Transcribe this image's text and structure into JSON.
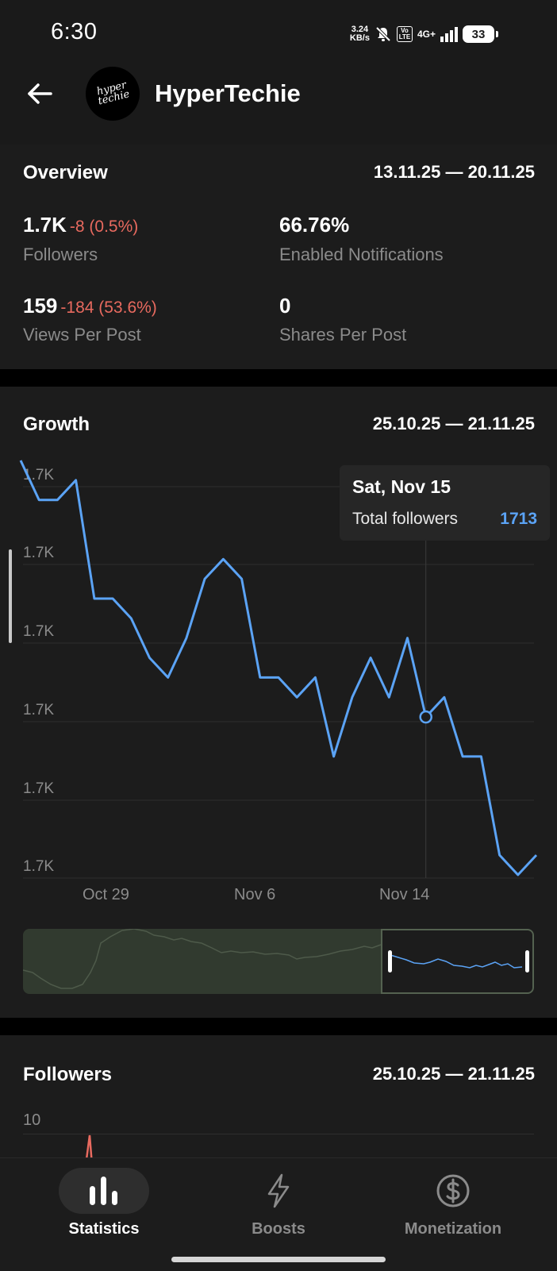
{
  "status_bar": {
    "time": "6:30",
    "net_speed_value": "3.24",
    "net_speed_unit": "KB/s",
    "volte": "Vo LTE",
    "network": "4G+",
    "battery": "33"
  },
  "header": {
    "channel_name": "HyperTechie",
    "avatar_text_line1": "hyper",
    "avatar_text_line2": "techie"
  },
  "overview": {
    "title": "Overview",
    "range": "13.11.25 — 20.11.25",
    "stats": [
      {
        "value": "1.7K",
        "delta": "-8 (0.5%)",
        "label": "Followers"
      },
      {
        "value": "66.76%",
        "delta": "",
        "label": "Enabled Notifications"
      },
      {
        "value": "159",
        "delta": "-184 (53.6%)",
        "label": "Views Per Post"
      },
      {
        "value": "0",
        "delta": "",
        "label": "Shares Per Post"
      }
    ]
  },
  "growth": {
    "title": "Growth",
    "range": "25.10.25 — 21.11.25",
    "tooltip": {
      "date": "Sat, Nov 15",
      "label": "Total followers",
      "value": "1713"
    }
  },
  "followers": {
    "title": "Followers",
    "range": "25.10.25 — 21.11.25",
    "first_tick": "10"
  },
  "bottom_nav": {
    "items": [
      {
        "label": "Statistics",
        "icon": "bar-chart-icon",
        "active": true
      },
      {
        "label": "Boosts",
        "icon": "lightning-icon",
        "active": false
      },
      {
        "label": "Monetization",
        "icon": "dollar-circle-icon",
        "active": false
      }
    ]
  },
  "colors": {
    "accent_blue": "#5ba3f5",
    "negative_red": "#e86a5f",
    "background": "#1c1c1c"
  },
  "chart_data": {
    "type": "line",
    "title": "Growth",
    "series": [
      {
        "name": "Total followers",
        "values": [
          1726,
          1724,
          1724,
          1725,
          1719,
          1719,
          1718,
          1716,
          1715,
          1717,
          1720,
          1721,
          1720,
          1715,
          1715,
          1714,
          1715,
          1711,
          1714,
          1716,
          1714,
          1717,
          1713,
          1714,
          1711,
          1711,
          1706,
          1705,
          1706
        ]
      }
    ],
    "x_tick_labels": [
      "Oct 29",
      "Nov 6",
      "Nov 14"
    ],
    "y_tick_labels": [
      "1.7K",
      "1.7K",
      "1.7K",
      "1.7K",
      "1.7K",
      "1.7K"
    ],
    "highlight_index": 22
  }
}
